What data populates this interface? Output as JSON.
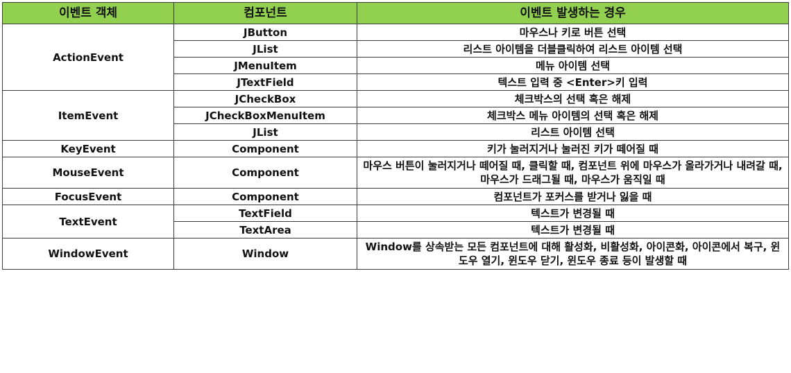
{
  "headers": [
    "이벤트 객체",
    "컴포넌트",
    "이벤트 발생하는 경우"
  ],
  "rows": [
    {
      "event": "ActionEvent",
      "component": "JButton",
      "desc": "마우스나 키로 버튼 선택"
    },
    {
      "component": "JList",
      "desc": "리스트 아이템을 더블클릭하여 리스트 아이템 선택"
    },
    {
      "component": "JMenuItem",
      "desc": "메뉴 아이템 선택"
    },
    {
      "component": "JTextField",
      "desc": "텍스트 입력 중 <Enter>키 입력"
    },
    {
      "event": "ItemEvent",
      "component": "JCheckBox",
      "desc": "체크박스의 선택 혹은 해제"
    },
    {
      "component": "JCheckBoxMenuItem",
      "desc": "체크박스 메뉴 아이템의 선택 혹은 해제"
    },
    {
      "component": "JList",
      "desc": "리스트 아이템 선택"
    },
    {
      "event": "KeyEvent",
      "component": "Component",
      "desc": "키가 눌러지거나 눌러진 키가 떼어질 때"
    },
    {
      "event": "MouseEvent",
      "component": "Component",
      "desc": "마우스 버튼이 눌러지거나 떼어질 때, 클릭할 때, 컴포넌트 위에 마우스가 올라가거나 내려갈 때, 마우스가 드래그될 때, 마우스가 움직일 때"
    },
    {
      "event": "FocusEvent",
      "component": "Component",
      "desc": "컴포넌트가 포커스를 받거나 잃을 때"
    },
    {
      "event": "TextEvent",
      "component": "TextField",
      "desc": "텍스트가 변경될 때"
    },
    {
      "component": "TextArea",
      "desc": "텍스트가 변경될 때"
    },
    {
      "event": "WindowEvent",
      "component": "Window",
      "desc": "Window를 상속받는 모든 컴포넌트에 대해 활성화, 비활성화, 아이콘화, 아이콘에서 복구, 윈도우 열기, 윈도우 닫기, 윈도우 종료 등이 발생할 때"
    }
  ]
}
